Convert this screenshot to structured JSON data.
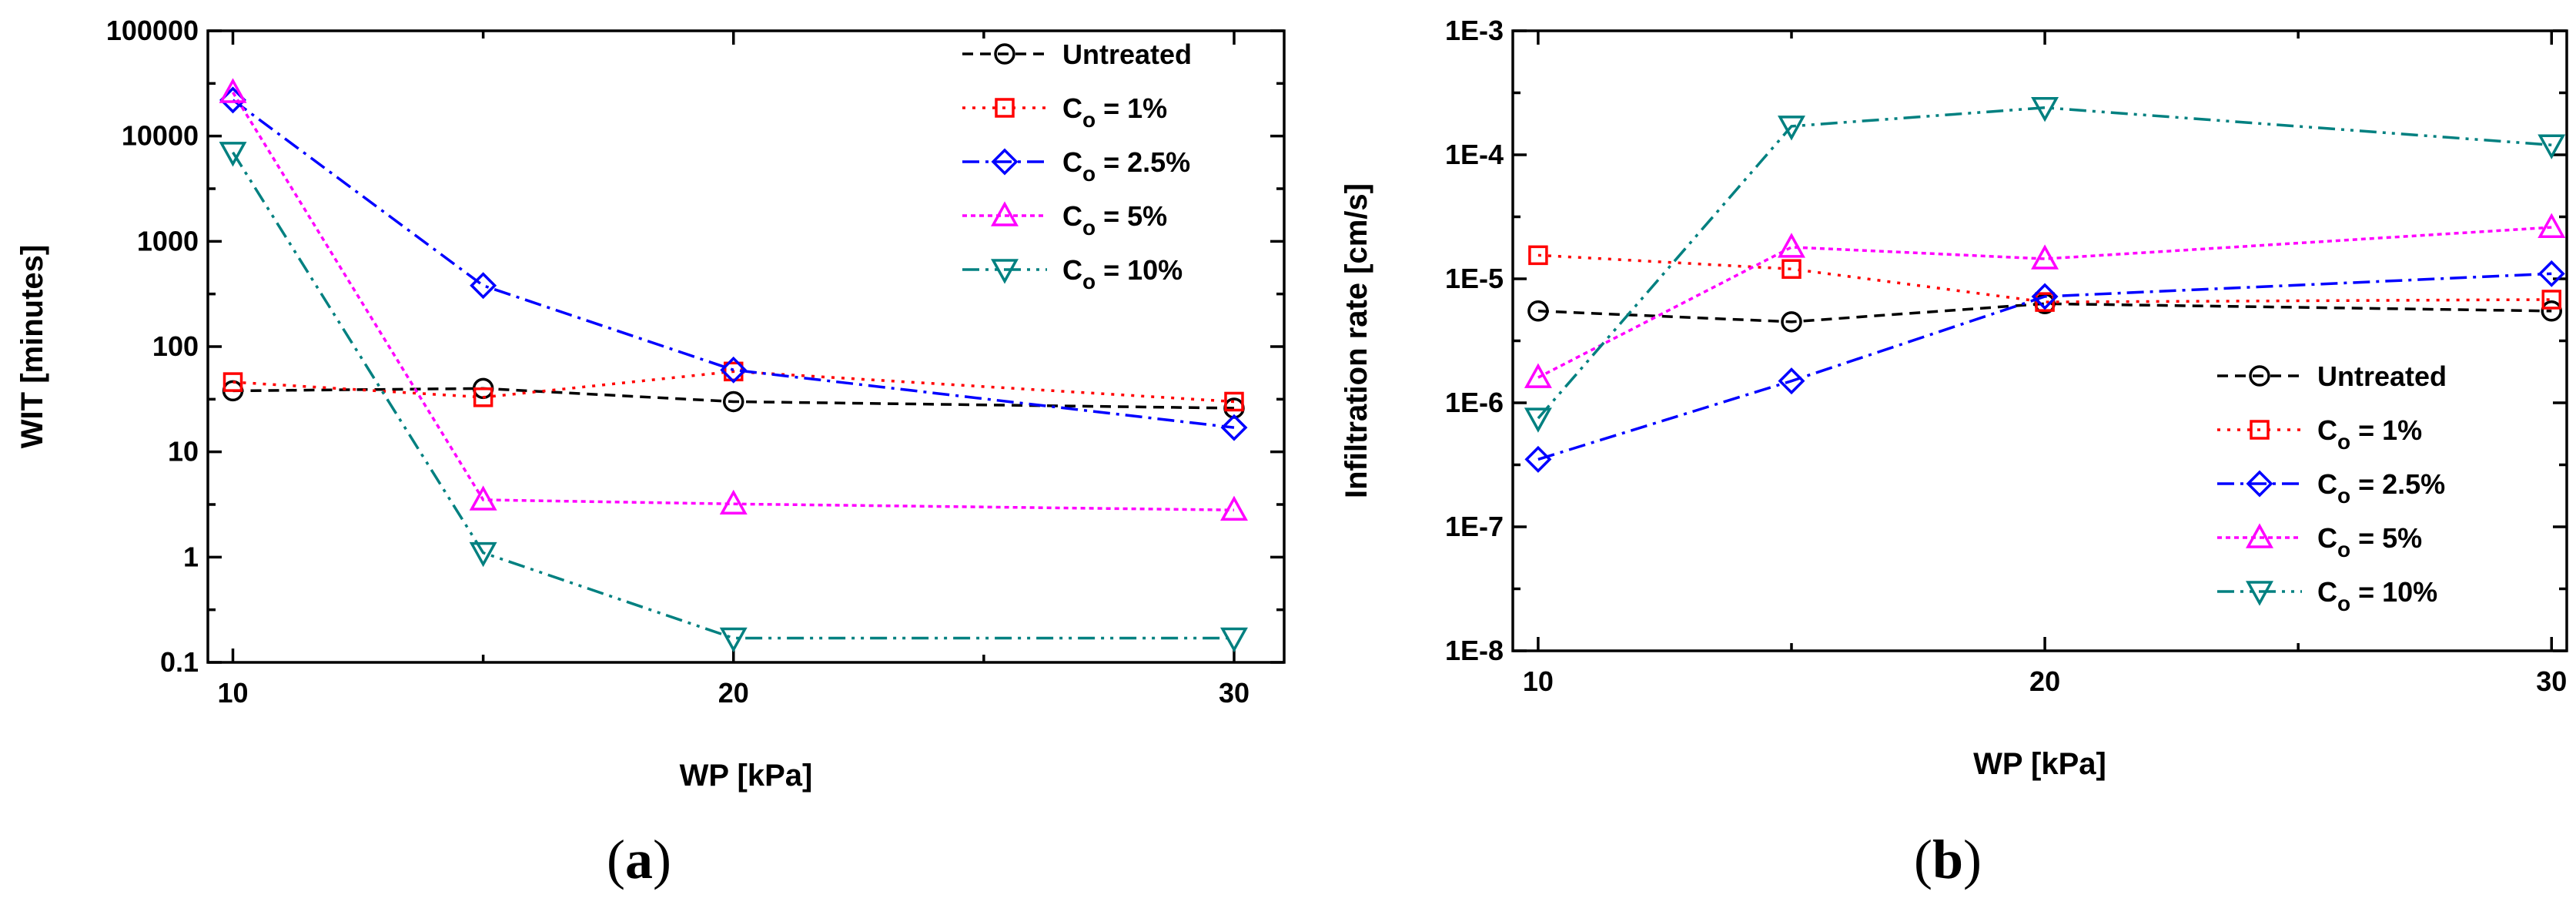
{
  "figure": {
    "panels": [
      "(a)",
      "(b)"
    ]
  },
  "chart_data": [
    {
      "id": "a",
      "type": "line",
      "panel_label": "a",
      "xlabel": "WP [kPa]",
      "ylabel": "WIT [minutes]",
      "xscale": "linear",
      "yscale": "log",
      "xlim": [
        9.5,
        31
      ],
      "ylim": [
        0.1,
        100000
      ],
      "xticks": [
        10,
        20,
        30
      ],
      "xtick_labels": [
        "10",
        "20",
        "30"
      ],
      "yticks": [
        0.1,
        1,
        10,
        100,
        1000,
        10000,
        100000
      ],
      "ytick_labels": [
        "0.1",
        "1",
        "10",
        "100",
        "1000",
        "10000",
        "100000"
      ],
      "legend_position": "top-right",
      "x": [
        10,
        15,
        20,
        30
      ],
      "series": [
        {
          "name": "Untreated",
          "legend_main": "Untreated",
          "legend_sub": "",
          "legend_rest": "",
          "color": "#000000",
          "dash": "14,9",
          "marker": "circle",
          "values": [
            38,
            40,
            30,
            26
          ]
        },
        {
          "name": "Co = 1%",
          "legend_main": "C",
          "legend_sub": "o",
          "legend_rest": " = 1%",
          "color": "#ff0000",
          "dash": "4,9",
          "marker": "square",
          "values": [
            46,
            33,
            58,
            30
          ]
        },
        {
          "name": "Co = 2.5%",
          "legend_main": "C",
          "legend_sub": "o",
          "legend_rest": " = 2.5%",
          "color": "#0000ff",
          "dash": "22,8,4,8",
          "marker": "diamond",
          "values": [
            22000,
            380,
            60,
            17
          ]
        },
        {
          "name": "Co = 5%",
          "legend_main": "C",
          "legend_sub": "o",
          "legend_rest": " = 5%",
          "color": "#ff00ff",
          "dash": "6,5",
          "marker": "triangle-up",
          "values": [
            26000,
            3.5,
            3.2,
            2.8
          ]
        },
        {
          "name": "Co = 10%",
          "legend_main": "C",
          "legend_sub": "o",
          "legend_rest": " = 10%",
          "color": "#008080",
          "dash": "22,8,4,8,4,8",
          "marker": "triangle-down",
          "values": [
            7000,
            1.1,
            0.17,
            0.17
          ]
        }
      ]
    },
    {
      "id": "b",
      "type": "line",
      "panel_label": "b",
      "xlabel": "WP [kPa]",
      "ylabel": "Infiltration rate [cm/s]",
      "xscale": "linear",
      "yscale": "log",
      "xlim": [
        9.5,
        30.3
      ],
      "ylim": [
        1e-08,
        0.001
      ],
      "xticks": [
        10,
        20,
        30
      ],
      "xtick_labels": [
        "10",
        "20",
        "30"
      ],
      "yticks": [
        1e-08,
        1e-07,
        1e-06,
        1e-05,
        0.0001,
        0.001
      ],
      "ytick_labels": [
        "1E-8",
        "1E-7",
        "1E-6",
        "1E-5",
        "1E-4",
        "1E-3"
      ],
      "legend_position": "bottom-right",
      "x": [
        10,
        15,
        20,
        30
      ],
      "series": [
        {
          "name": "Untreated",
          "legend_main": "Untreated",
          "legend_sub": "",
          "legend_rest": "",
          "color": "#000000",
          "dash": "14,9",
          "marker": "circle",
          "values": [
            5.5e-06,
            4.5e-06,
            6.3e-06,
            5.5e-06
          ]
        },
        {
          "name": "Co = 1%",
          "legend_main": "C",
          "legend_sub": "o",
          "legend_rest": " = 1%",
          "color": "#ff0000",
          "dash": "4,9",
          "marker": "square",
          "values": [
            1.55e-05,
            1.2e-05,
            6.5e-06,
            6.8e-06
          ]
        },
        {
          "name": "Co = 2.5%",
          "legend_main": "C",
          "legend_sub": "o",
          "legend_rest": " = 2.5%",
          "color": "#0000ff",
          "dash": "22,8,4,8",
          "marker": "diamond",
          "values": [
            3.5e-07,
            1.5e-06,
            7.2e-06,
            1.1e-05
          ]
        },
        {
          "name": "Co = 5%",
          "legend_main": "C",
          "legend_sub": "o",
          "legend_rest": " = 5%",
          "color": "#ff00ff",
          "dash": "6,5",
          "marker": "triangle-up",
          "values": [
            1.6e-06,
            1.8e-05,
            1.45e-05,
            2.6e-05
          ]
        },
        {
          "name": "Co = 10%",
          "legend_main": "C",
          "legend_sub": "o",
          "legend_rest": " = 10%",
          "color": "#008080",
          "dash": "22,8,4,8,4,8",
          "marker": "triangle-down",
          "values": [
            7.5e-07,
            0.00017,
            0.00024,
            0.00012
          ]
        }
      ]
    }
  ]
}
